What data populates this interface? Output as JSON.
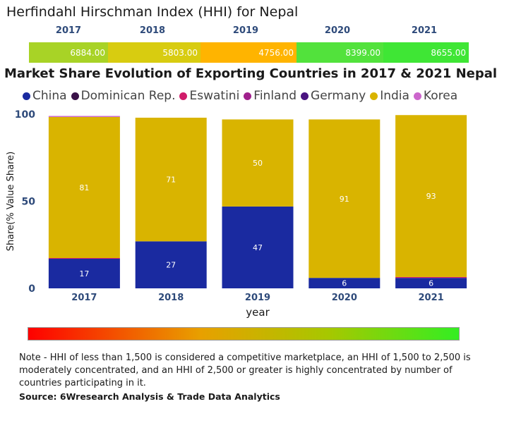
{
  "hhi": {
    "title": "Herfindahl Hirschman Index (HHI) for Nepal",
    "years": [
      "2017",
      "2018",
      "2019",
      "2020",
      "2021"
    ],
    "values": [
      "6884.00",
      "5803.00",
      "4756.00",
      "8399.00",
      "8655.00"
    ],
    "colors": [
      "#a8d326",
      "#d8cc10",
      "#ffb400",
      "#52e23c",
      "#3fe635"
    ]
  },
  "chart_data": {
    "type": "bar",
    "stacked": true,
    "title": "Market Share Evolution of Exporting Countries in 2017 & 2021 Nepal",
    "xlabel": "year",
    "ylabel": "Share(% Value Share)",
    "ylim": [
      0,
      100
    ],
    "yticks": [
      "0",
      "50",
      "100"
    ],
    "categories": [
      "2017",
      "2018",
      "2019",
      "2020",
      "2021"
    ],
    "series": [
      {
        "name": "China",
        "color": "#1a2aa0",
        "values": [
          17,
          27,
          47,
          6,
          6
        ],
        "labels": [
          "17",
          "27",
          "47",
          "6",
          "6"
        ]
      },
      {
        "name": "Dominican Rep.",
        "color": "#3a1248",
        "values": [
          0,
          0,
          0,
          0,
          0
        ],
        "labels": [
          "",
          "",
          "",
          "",
          ""
        ]
      },
      {
        "name": "Eswatini",
        "color": "#d01c6a",
        "values": [
          0.4,
          0,
          0,
          0,
          0.5
        ],
        "labels": [
          "",
          "",
          "",
          "",
          ""
        ]
      },
      {
        "name": "Finland",
        "color": "#a0208c",
        "values": [
          0,
          0,
          0,
          0,
          0
        ],
        "labels": [
          "",
          "",
          "",
          "",
          ""
        ]
      },
      {
        "name": "Germany",
        "color": "#4a1480",
        "values": [
          0,
          0,
          0,
          0,
          0
        ],
        "labels": [
          "",
          "",
          "",
          "",
          ""
        ]
      },
      {
        "name": "India",
        "color": "#d9b400",
        "values": [
          81,
          71,
          50,
          91,
          93
        ],
        "labels": [
          "81",
          "71",
          "50",
          "91",
          "93"
        ]
      },
      {
        "name": "Korea",
        "color": "#cc66cc",
        "values": [
          0.6,
          0,
          0,
          0,
          0
        ],
        "labels": [
          "",
          "",
          "",
          "",
          ""
        ]
      }
    ],
    "grid": false,
    "legend": "top"
  },
  "footer": {
    "note": "Note - HHI of less than 1,500 is considered a competitive marketplace, an HHI of 1,500 to 2,500 is moderately concentrated, and an HHI of 2,500 or greater is highly concentrated by number of countries participating in it.",
    "source": "Source: 6Wresearch Analysis & Trade Data Analytics"
  }
}
